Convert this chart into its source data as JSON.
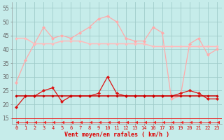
{
  "background_color": "#c6ecea",
  "grid_color": "#a0ccca",
  "xlabel": "Vent moyen/en rafales ( km/h )",
  "x_ticks": [
    0,
    1,
    2,
    3,
    4,
    5,
    6,
    7,
    8,
    9,
    10,
    11,
    12,
    13,
    14,
    16,
    17,
    18,
    19,
    20,
    21,
    22,
    23
  ],
  "x_positions": [
    0,
    1,
    2,
    3,
    4,
    5,
    6,
    7,
    8,
    9,
    10,
    11,
    12,
    13,
    14,
    15,
    16,
    17,
    18,
    19,
    20,
    21,
    22
  ],
  "xlim": [
    -0.5,
    22.5
  ],
  "ylim": [
    13,
    57
  ],
  "yticks": [
    15,
    20,
    25,
    30,
    35,
    40,
    45,
    50,
    55
  ],
  "series": [
    {
      "name": "light_pink_spiky",
      "color": "#ffaaaa",
      "lw": 0.9,
      "marker": "D",
      "ms": 2.2,
      "y": [
        28,
        36,
        42,
        48,
        44,
        45,
        44,
        46,
        48,
        51,
        52,
        50,
        44,
        43,
        43,
        48,
        46,
        22,
        23,
        42,
        44,
        38,
        40
      ]
    },
    {
      "name": "light_pink_flat",
      "color": "#ffbbbb",
      "lw": 1.1,
      "marker": "D",
      "ms": 1.8,
      "y": [
        44,
        44,
        42,
        42,
        42,
        43,
        43,
        43,
        42,
        42,
        42,
        42,
        42,
        42,
        42,
        41,
        41,
        41,
        41,
        41,
        41,
        41,
        41
      ]
    },
    {
      "name": "dark_red_spiky",
      "color": "#dd1111",
      "lw": 0.9,
      "marker": "D",
      "ms": 2.2,
      "y": [
        19,
        23,
        23,
        25,
        26,
        21,
        23,
        23,
        23,
        24,
        30,
        24,
        23,
        23,
        23,
        23,
        23,
        23,
        24,
        25,
        24,
        22,
        22
      ]
    },
    {
      "name": "dark_red_flat",
      "color": "#cc0000",
      "lw": 1.1,
      "marker": "D",
      "ms": 1.8,
      "y": [
        23,
        23,
        23,
        23,
        23,
        23,
        23,
        23,
        23,
        23,
        23,
        23,
        23,
        23,
        23,
        23,
        23,
        23,
        23,
        23,
        23,
        23,
        23
      ]
    },
    {
      "name": "arrow_line",
      "color": "#ee2222",
      "lw": 0.7,
      "marker": 4,
      "ms": 3.5,
      "y": [
        13.5,
        13.5,
        13.5,
        13.5,
        13.5,
        13.5,
        13.5,
        13.5,
        13.5,
        13.5,
        13.5,
        13.5,
        13.5,
        13.5,
        13.5,
        13.5,
        13.5,
        13.5,
        13.5,
        13.5,
        13.5,
        13.5,
        13.5
      ]
    }
  ],
  "tick_label_color": "#dd0000",
  "xlabel_color": "#dd0000"
}
